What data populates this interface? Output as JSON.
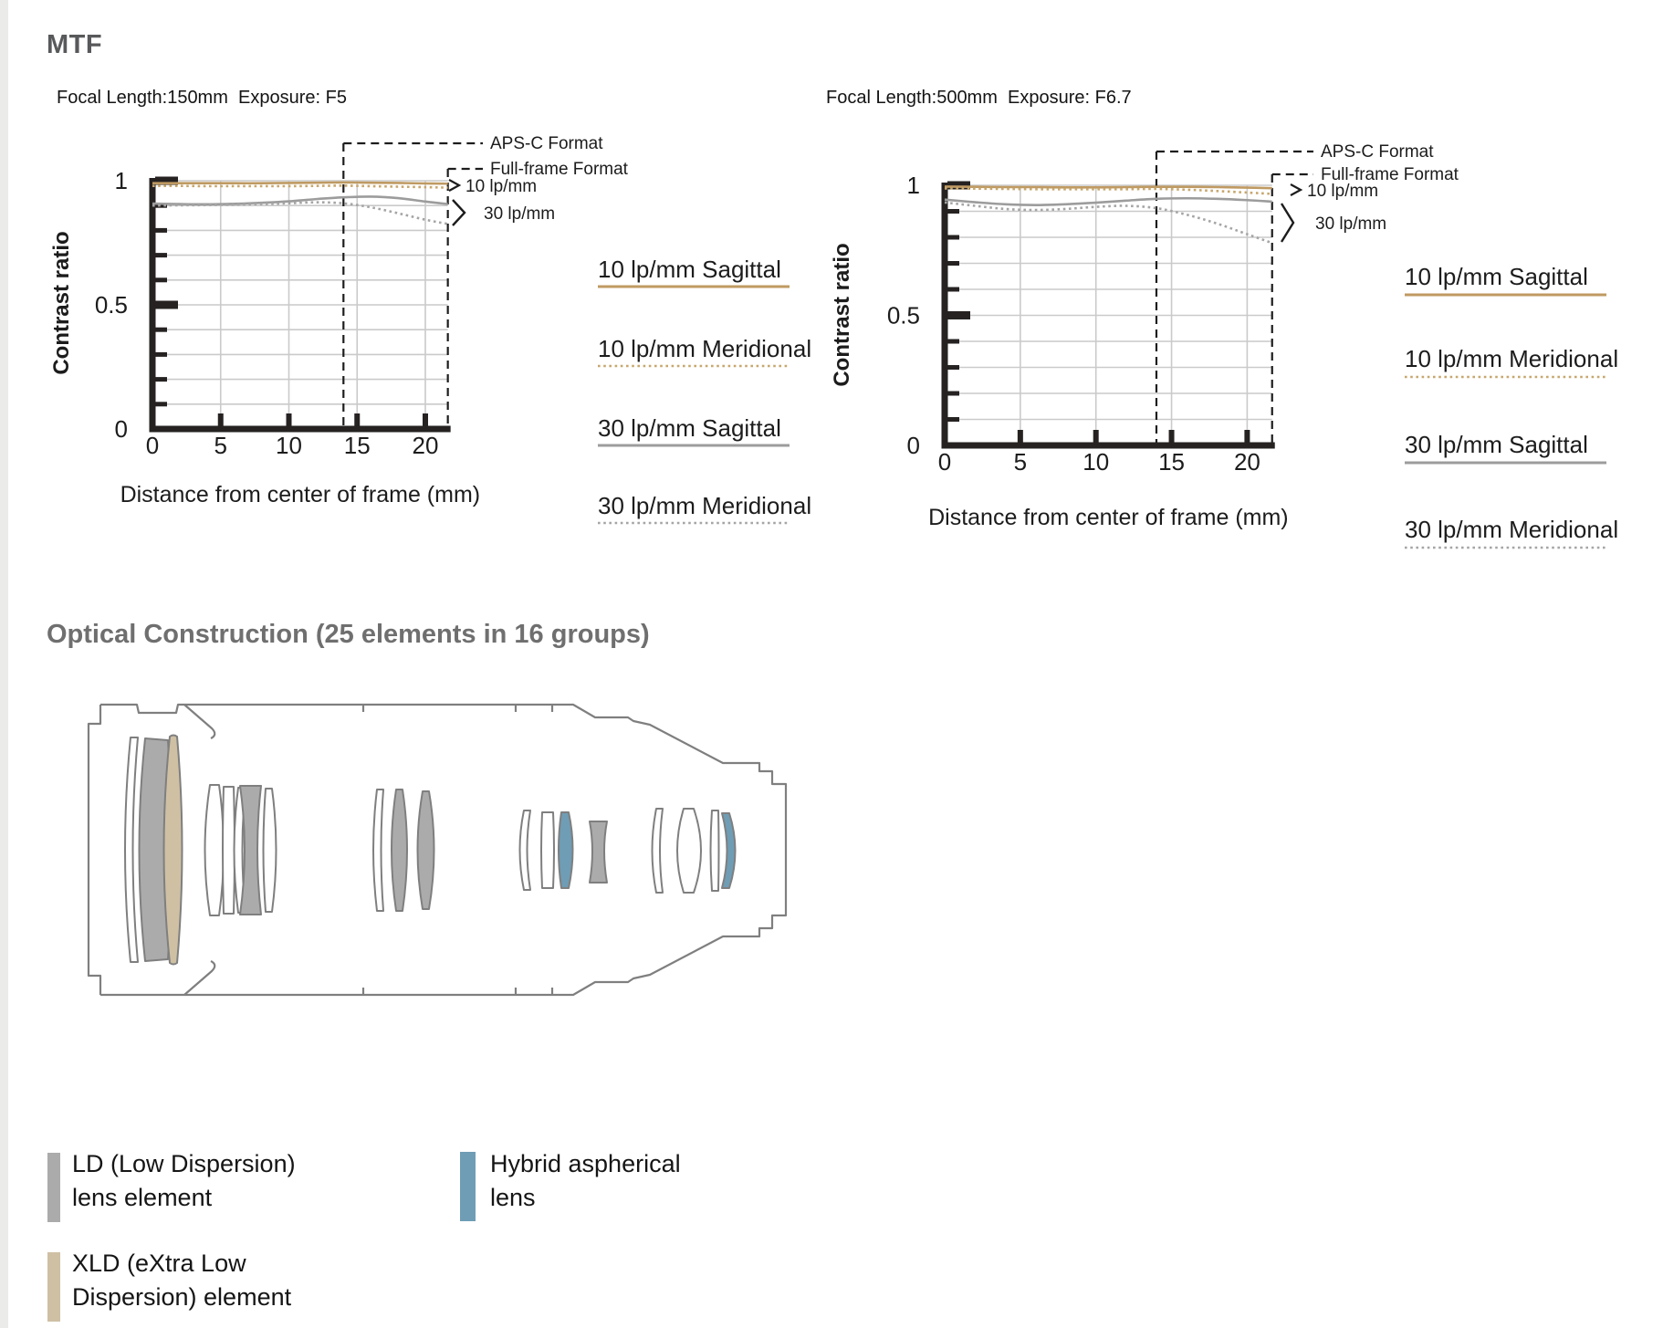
{
  "page": {
    "title": "MTF"
  },
  "colors": {
    "heading": "#58595b",
    "heading2": "#6f6f6f",
    "accent_line": "#bf9a62",
    "accent_dotted": "#c7a76e",
    "gray_line": "#9c9c9c",
    "gray_dotted": "#a5a5a5",
    "axis": "#262222",
    "grid": "#cacaca",
    "dash": "#1d1d1d",
    "ld": "#ababab",
    "xld": "#cfc0a4",
    "hybrid": "#6f9db5",
    "lens_outline": "#7f7f7f"
  },
  "chart_data": [
    {
      "type": "line",
      "title": "Focal Length:150mm  Exposure: F5",
      "xlabel": "Distance from center of frame (mm)",
      "ylabel": "Contrast ratio",
      "xlim": [
        0,
        21.65
      ],
      "ylim": [
        0,
        1
      ],
      "xticks": [
        "0",
        "5",
        "10",
        "15",
        "20"
      ],
      "xtick_values": [
        0,
        5,
        10,
        15,
        20
      ],
      "yticks": [
        "1",
        "0.5",
        "0"
      ],
      "ytick_values": [
        1,
        0.5,
        0
      ],
      "grid": true,
      "legend_position": "right",
      "x": [
        0,
        2,
        4,
        6,
        8,
        10,
        12,
        14,
        16,
        18,
        20,
        21.65
      ],
      "series": [
        {
          "name": "10 lp/mm Sagittal",
          "color_key": "accent_line",
          "style": "solid",
          "values": [
            0.99,
            0.99,
            0.99,
            0.99,
            0.99,
            0.991,
            0.992,
            0.993,
            0.992,
            0.991,
            0.989,
            0.988
          ]
        },
        {
          "name": "10 lp/mm Meridional",
          "color_key": "accent_dotted",
          "style": "dotted",
          "values": [
            0.979,
            0.979,
            0.978,
            0.978,
            0.978,
            0.978,
            0.979,
            0.98,
            0.978,
            0.976,
            0.974,
            0.972
          ]
        },
        {
          "name": "30 lp/mm Sagittal",
          "color_key": "gray_line",
          "style": "solid",
          "values": [
            0.908,
            0.906,
            0.905,
            0.907,
            0.911,
            0.917,
            0.926,
            0.933,
            0.936,
            0.93,
            0.916,
            0.906
          ]
        },
        {
          "name": "30 lp/mm Meridional",
          "color_key": "gray_dotted",
          "style": "dotted",
          "values": [
            0.9,
            0.901,
            0.902,
            0.904,
            0.906,
            0.909,
            0.913,
            0.909,
            0.893,
            0.869,
            0.843,
            0.826
          ]
        }
      ],
      "annotations": {
        "apsc_label": "APS-C Format",
        "apsc_x": 14,
        "fullframe_label": "Full-frame Format",
        "fullframe_x": 21.65,
        "lp10_label": "10 lp/mm",
        "lp30_label": "30 lp/mm"
      },
      "legend": [
        {
          "label": "10 lp/mm Sagittal",
          "color_key": "accent_line",
          "style": "solid"
        },
        {
          "label": "10 lp/mm Meridional",
          "color_key": "accent_dotted",
          "style": "dotted"
        },
        {
          "label": "30 lp/mm Sagittal",
          "color_key": "gray_line",
          "style": "solid"
        },
        {
          "label": "30 lp/mm Meridional",
          "color_key": "gray_dotted",
          "style": "dotted"
        }
      ]
    },
    {
      "type": "line",
      "title": "Focal Length:500mm  Exposure: F6.7",
      "xlabel": "Distance from center of frame (mm)",
      "ylabel": "Contrast ratio",
      "xlim": [
        0,
        21.65
      ],
      "ylim": [
        0,
        1
      ],
      "xticks": [
        "0",
        "5",
        "10",
        "15",
        "20"
      ],
      "xtick_values": [
        0,
        5,
        10,
        15,
        20
      ],
      "yticks": [
        "1",
        "0.5",
        "0"
      ],
      "ytick_values": [
        1,
        0.5,
        0
      ],
      "grid": true,
      "legend_position": "right",
      "x": [
        0,
        2,
        4,
        6,
        8,
        10,
        12,
        14,
        16,
        18,
        20,
        21.65
      ],
      "series": [
        {
          "name": "10 lp/mm Sagittal",
          "color_key": "accent_line",
          "style": "solid",
          "values": [
            0.995,
            0.994,
            0.993,
            0.993,
            0.992,
            0.992,
            0.993,
            0.994,
            0.994,
            0.993,
            0.991,
            0.989
          ]
        },
        {
          "name": "10 lp/mm Meridional",
          "color_key": "accent_dotted",
          "style": "dotted",
          "values": [
            0.988,
            0.987,
            0.986,
            0.985,
            0.985,
            0.985,
            0.985,
            0.986,
            0.983,
            0.978,
            0.972,
            0.967
          ]
        },
        {
          "name": "30 lp/mm Sagittal",
          "color_key": "gray_line",
          "style": "solid",
          "values": [
            0.945,
            0.935,
            0.927,
            0.924,
            0.927,
            0.933,
            0.941,
            0.948,
            0.95,
            0.948,
            0.943,
            0.937
          ]
        },
        {
          "name": "30 lp/mm Meridional",
          "color_key": "gray_dotted",
          "style": "dotted",
          "values": [
            0.934,
            0.921,
            0.909,
            0.905,
            0.909,
            0.917,
            0.921,
            0.912,
            0.887,
            0.853,
            0.812,
            0.778
          ]
        }
      ],
      "annotations": {
        "apsc_label": "APS-C Format",
        "apsc_x": 14,
        "fullframe_label": "Full-frame Format",
        "fullframe_x": 21.65,
        "lp10_label": "10 lp/mm",
        "lp30_label": "30 lp/mm"
      },
      "legend": [
        {
          "label": "10 lp/mm Sagittal",
          "color_key": "accent_line",
          "style": "solid"
        },
        {
          "label": "10 lp/mm Meridional",
          "color_key": "accent_dotted",
          "style": "dotted"
        },
        {
          "label": "30 lp/mm Sagittal",
          "color_key": "gray_line",
          "style": "solid"
        },
        {
          "label": "30 lp/mm Meridional",
          "color_key": "gray_dotted",
          "style": "dotted"
        }
      ]
    }
  ],
  "optics": {
    "title": "Optical Construction (25 elements in 16 groups)",
    "legend": [
      {
        "id": "ld",
        "color_key": "ld",
        "lines": [
          "LD (Low Dispersion)",
          "lens element"
        ]
      },
      {
        "id": "xld",
        "color_key": "xld",
        "lines": [
          "XLD (eXtra Low",
          "Dispersion) element"
        ]
      },
      {
        "id": "hybrid",
        "color_key": "hybrid",
        "lines": [
          "Hybrid aspherical",
          "lens"
        ]
      }
    ]
  }
}
